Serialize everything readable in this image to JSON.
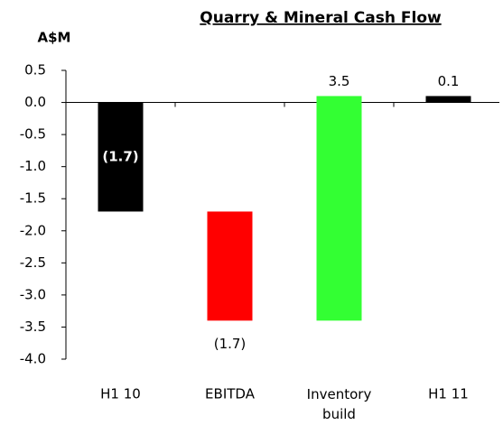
{
  "chart_data": {
    "type": "waterfall",
    "title": "Quarry & Mineral Cash Flow",
    "y_label": "A$M",
    "categories": [
      "H1 10",
      "EBITDA",
      "Inventory build",
      "H1 11"
    ],
    "values": [
      -1.7,
      -1.7,
      3.5,
      0.1
    ],
    "value_labels": [
      "(1.7)",
      "(1.7)",
      "3.5",
      "0.1"
    ],
    "totals": [
      true,
      false,
      false,
      true
    ],
    "colors": [
      "#000000",
      "#ff0000",
      "#33ff33",
      "#000000"
    ],
    "ylim": [
      -4.0,
      0.5
    ],
    "yticks": [
      0.5,
      {
        "value": 0,
        "label": "0.0"
      },
      -0.5,
      {
        "value": -1,
        "label": "-1.0"
      },
      -1.5,
      {
        "value": -2,
        "label": "-2.0"
      },
      -2.5,
      {
        "value": -3,
        "label": "-3.0"
      },
      -3.5,
      {
        "value": -4,
        "label": "-4.0"
      }
    ],
    "grid": false
  }
}
